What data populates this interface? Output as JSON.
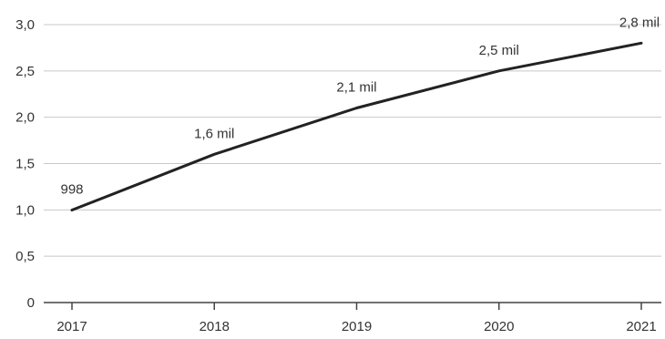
{
  "chart_data": {
    "type": "line",
    "title": "",
    "xlabel": "",
    "ylabel": "",
    "categories": [
      "2017",
      "2018",
      "2019",
      "2020",
      "2021"
    ],
    "series": [
      {
        "values": [
          0.998,
          1.6,
          2.1,
          2.5,
          2.8
        ],
        "labels": [
          "998",
          "1,6 mil",
          "2,1 mil",
          "2,5 mil",
          "2,8 mil"
        ],
        "color": "#222222"
      }
    ],
    "ylim": [
      0,
      3
    ],
    "yticks": [
      0,
      0.5,
      1.0,
      1.5,
      2.0,
      2.5,
      3.0
    ],
    "ytick_labels": [
      "0",
      "0,5",
      "1,0",
      "1,5",
      "2,0",
      "2,5",
      "3,0"
    ],
    "grid": "horizontal",
    "legend": "none"
  }
}
